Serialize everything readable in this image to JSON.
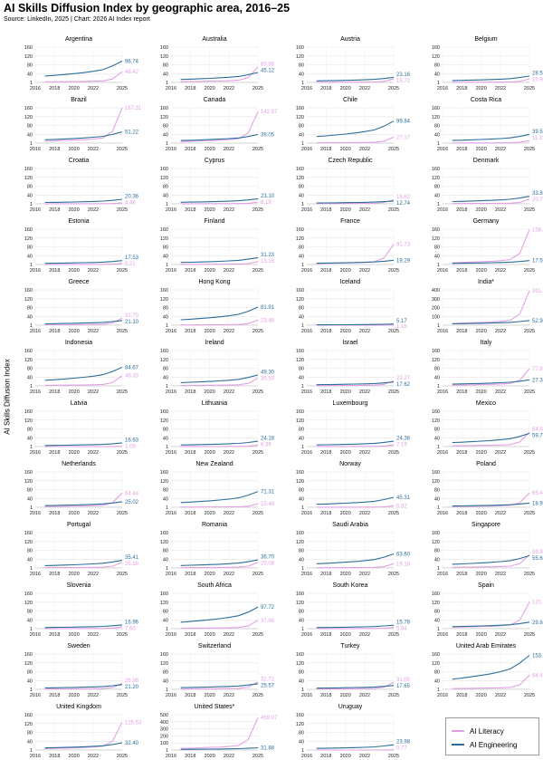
{
  "header": {
    "title": "AI Skills Diffusion Index by geographic area, 2016–25",
    "source": "Source: LinkedIn, 2025 | Chart: 2026 AI Index report"
  },
  "colors": {
    "literacy": "#e3a1e3",
    "engineering": "#2b6e9c"
  },
  "legend": {
    "literacy_label": "AI Literacy",
    "engineering_label": "AI Engineering"
  },
  "chart_data": {
    "type": "line",
    "ylabel": "AI Skills Diffusion Index",
    "x_ticks": [
      2016,
      2018,
      2020,
      2022,
      2025
    ],
    "y_ticks": [
      1,
      40,
      80,
      120,
      160
    ],
    "ylim": [
      0,
      160
    ],
    "xlim": [
      2016,
      2025
    ],
    "grid": true,
    "legend_position": "bottom-right",
    "series_names": [
      "AI Literacy",
      "AI Engineering"
    ],
    "panels": [
      {
        "name": "Argentina",
        "literacy": 48.42,
        "engineering": 96.74
      },
      {
        "name": "Australia",
        "literacy": 69.88,
        "engineering": 45.12
      },
      {
        "name": "Austria",
        "literacy": 15.72,
        "engineering": 23.16
      },
      {
        "name": "Belgium",
        "literacy": 15.94,
        "engineering": 28.52
      },
      {
        "name": "Brazil",
        "literacy": 167.31,
        "engineering": 51.22
      },
      {
        "name": "Canada",
        "literacy": 142.97,
        "engineering": 39.05
      },
      {
        "name": "Chile",
        "literacy": 27.17,
        "engineering": 99.84
      },
      {
        "name": "Costa Rica",
        "literacy": 11.19,
        "engineering": 39.55
      },
      {
        "name": "Croatia",
        "literacy": 4.46,
        "engineering": 20.36
      },
      {
        "name": "Cyprus",
        "literacy": 8.18,
        "engineering": 23.1
      },
      {
        "name": "Czech Republic",
        "literacy": 18.62,
        "engineering": 12.74
      },
      {
        "name": "Denmark",
        "literacy": 20.75,
        "engineering": 33.85
      },
      {
        "name": "Estonia",
        "literacy": 5.21,
        "engineering": 17.53
      },
      {
        "name": "Finland",
        "literacy": 13.16,
        "engineering": 31.23
      },
      {
        "name": "France",
        "literacy": 91.73,
        "engineering": 19.29
      },
      {
        "name": "Germany",
        "literacy": 158.2,
        "engineering": 17.5
      },
      {
        "name": "Greece",
        "literacy": 31.7,
        "engineering": 21.1
      },
      {
        "name": "Hong Kong",
        "literacy": 23.46,
        "engineering": 81.91
      },
      {
        "name": "Iceland",
        "literacy": 1.15,
        "engineering": 5.17
      },
      {
        "name": "India*",
        "literacy": 391.99,
        "engineering": 52.94,
        "ylim": [
          0,
          400
        ],
        "y_ticks": [
          1,
          100,
          200,
          300,
          400
        ]
      },
      {
        "name": "Indonesia",
        "literacy": 46.33,
        "engineering": 84.67
      },
      {
        "name": "Ireland",
        "literacy": 35.59,
        "engineering": 49.3
      },
      {
        "name": "Israel",
        "literacy": 22.27,
        "engineering": 17.62
      },
      {
        "name": "Italy",
        "literacy": 77.95,
        "engineering": 27.33
      },
      {
        "name": "Latvia",
        "literacy": 1.09,
        "engineering": 16.63
      },
      {
        "name": "Lithuania",
        "literacy": 6.39,
        "engineering": 24.18
      },
      {
        "name": "Luxembourg",
        "literacy": 7.19,
        "engineering": 24.38
      },
      {
        "name": "Mexico",
        "literacy": 64.84,
        "engineering": 59.71
      },
      {
        "name": "Netherlands",
        "literacy": 64.44,
        "engineering": 25.02
      },
      {
        "name": "New Zealand",
        "literacy": 15.48,
        "engineering": 71.31
      },
      {
        "name": "Norway",
        "literacy": 6.82,
        "engineering": 45.31
      },
      {
        "name": "Poland",
        "literacy": 65.41,
        "engineering": 18.99
      },
      {
        "name": "Portugal",
        "literacy": 25.38,
        "engineering": 35.41
      },
      {
        "name": "Romania",
        "literacy": 25.08,
        "engineering": 36.7
      },
      {
        "name": "Saudi Arabia",
        "literacy": 19.16,
        "engineering": 63.6
      },
      {
        "name": "Singapore",
        "literacy": 59.93,
        "engineering": 55.62
      },
      {
        "name": "Slovenia",
        "literacy": 7.6,
        "engineering": 16.96
      },
      {
        "name": "South Africa",
        "literacy": 37.68,
        "engineering": 97.72
      },
      {
        "name": "South Korea",
        "literacy": 5.64,
        "engineering": 15.78
      },
      {
        "name": "Spain",
        "literacy": 120.68,
        "engineering": 29.68
      },
      {
        "name": "Sweden",
        "literacy": 26.98,
        "engineering": 21.2
      },
      {
        "name": "Switzerland",
        "literacy": 32.72,
        "engineering": 25.57
      },
      {
        "name": "Turkey",
        "literacy": 31.0,
        "engineering": 17.65
      },
      {
        "name": "United Arab Emirates",
        "literacy": 64.41,
        "engineering": 153.74
      },
      {
        "name": "United Kingdom",
        "literacy": 125.53,
        "engineering": 32.4
      },
      {
        "name": "United States*",
        "literacy": 459.07,
        "engineering": 31.88,
        "ylim": [
          0,
          500
        ],
        "y_ticks": [
          1,
          100,
          200,
          300,
          400,
          500
        ]
      },
      {
        "name": "Uruguay",
        "literacy": 0.77,
        "engineering": 23.98
      }
    ]
  }
}
